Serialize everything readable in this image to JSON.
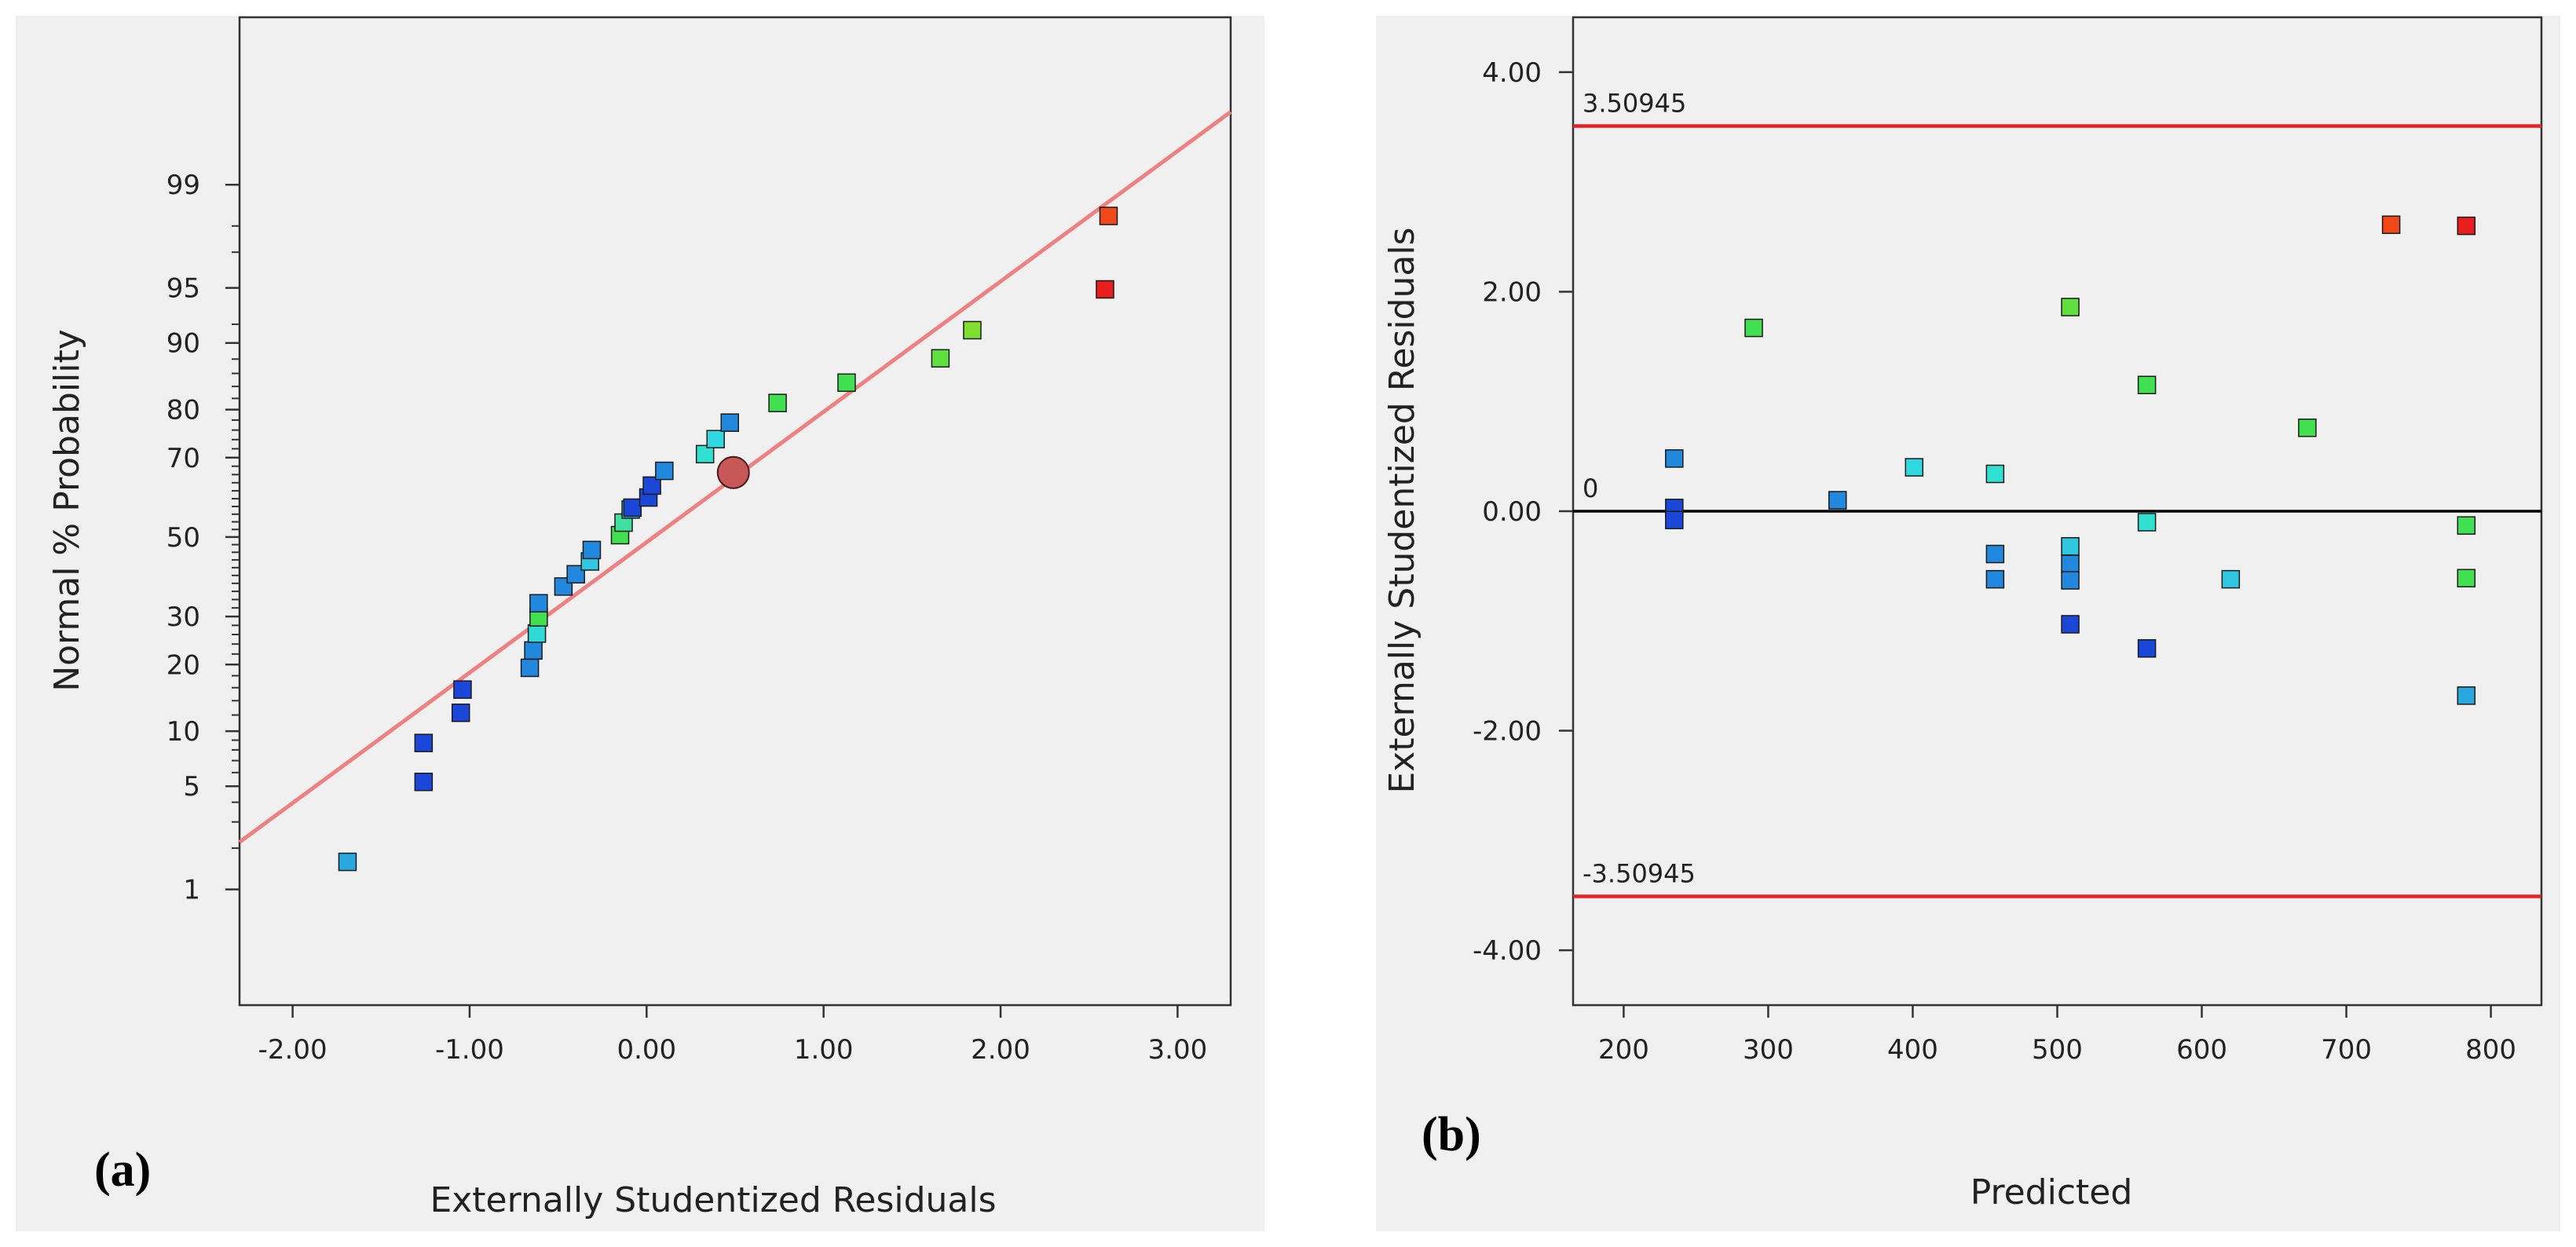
{
  "chart_data": [
    {
      "panel_label": "(a)",
      "type": "scatter",
      "title": "",
      "xlabel": "Externally Studentized Residuals",
      "ylabel": "Normal % Probability",
      "xlim": [
        -2.3,
        3.3
      ],
      "ylim": [
        0.1,
        99.97
      ],
      "y_scale": "probit",
      "grid": false,
      "x_ticks": [
        {
          "value": -2,
          "label": "-2.00"
        },
        {
          "value": -1,
          "label": "-1.00"
        },
        {
          "value": 0,
          "label": "0.00"
        },
        {
          "value": 1,
          "label": "1.00"
        },
        {
          "value": 2,
          "label": "2.00"
        },
        {
          "value": 3,
          "label": "3.00"
        }
      ],
      "y_ticks": [
        {
          "value": 1,
          "label": "1"
        },
        {
          "value": 5,
          "label": "5"
        },
        {
          "value": 10,
          "label": "10"
        },
        {
          "value": 20,
          "label": "20"
        },
        {
          "value": 30,
          "label": "30"
        },
        {
          "value": 50,
          "label": "50"
        },
        {
          "value": 70,
          "label": "70"
        },
        {
          "value": 80,
          "label": "80"
        },
        {
          "value": 90,
          "label": "90"
        },
        {
          "value": 95,
          "label": "95"
        },
        {
          "value": 99,
          "label": "99"
        }
      ],
      "y_minor_ticks": [
        2,
        3,
        4,
        6,
        7,
        8,
        9,
        12,
        14,
        16,
        18,
        22,
        24,
        26,
        28,
        32,
        34,
        36,
        38,
        40,
        42,
        44,
        46,
        48,
        52,
        54,
        56,
        58,
        60,
        62,
        64,
        66,
        68,
        72,
        74,
        76,
        78,
        82,
        84,
        86,
        88,
        92,
        97,
        98
      ],
      "reference_line": {
        "x": [
          -2.3,
          3.3
        ],
        "y": [
          2.2,
          99.75
        ],
        "color": "#f08080"
      },
      "points": [
        {
          "x": -1.69,
          "y": 1.6,
          "color": "#29a8e0"
        },
        {
          "x": -1.26,
          "y": 5.3,
          "color": "#1a47d8"
        },
        {
          "x": -1.26,
          "y": 8.7,
          "color": "#1a47d8"
        },
        {
          "x": -1.05,
          "y": 12.3,
          "color": "#1a47d8"
        },
        {
          "x": -1.04,
          "y": 15.7,
          "color": "#1a47d8"
        },
        {
          "x": -0.66,
          "y": 19.4,
          "color": "#2288dd"
        },
        {
          "x": -0.64,
          "y": 22.7,
          "color": "#2288dd"
        },
        {
          "x": -0.62,
          "y": 26.2,
          "color": "#30d8d8"
        },
        {
          "x": -0.61,
          "y": 29.8,
          "color": "#40e050"
        },
        {
          "x": -0.61,
          "y": 33.1,
          "color": "#2288dd"
        },
        {
          "x": -0.47,
          "y": 37.2,
          "color": "#2288dd"
        },
        {
          "x": -0.4,
          "y": 40.3,
          "color": "#2288dd"
        },
        {
          "x": -0.32,
          "y": 43.6,
          "color": "#30c8e0"
        },
        {
          "x": -0.31,
          "y": 46.6,
          "color": "#2288dd"
        },
        {
          "x": -0.15,
          "y": 50.5,
          "color": "#40e050"
        },
        {
          "x": -0.13,
          "y": 53.8,
          "color": "#40e0a0"
        },
        {
          "x": -0.09,
          "y": 57.2,
          "color": "#30c8e0"
        },
        {
          "x": -0.08,
          "y": 57.7,
          "color": "#1a47d8"
        },
        {
          "x": 0.01,
          "y": 60.3,
          "color": "#1a47d8"
        },
        {
          "x": 0.03,
          "y": 63.3,
          "color": "#1a47d8"
        },
        {
          "x": 0.1,
          "y": 66.9,
          "color": "#2288dd"
        },
        {
          "x": 0.33,
          "y": 70.8,
          "color": "#30e0d0"
        },
        {
          "x": 0.39,
          "y": 74.1,
          "color": "#30d8e0"
        },
        {
          "x": 0.47,
          "y": 77.5,
          "color": "#2288dd"
        },
        {
          "x": 0.74,
          "y": 81.2,
          "color": "#40e050"
        },
        {
          "x": 1.13,
          "y": 84.6,
          "color": "#40e050"
        },
        {
          "x": 1.66,
          "y": 88.1,
          "color": "#60e040"
        },
        {
          "x": 1.84,
          "y": 91.4,
          "color": "#80e030"
        },
        {
          "x": 2.59,
          "y": 94.9,
          "color": "#e81e1e"
        },
        {
          "x": 2.61,
          "y": 98.3,
          "color": "#f04818"
        }
      ],
      "highlight_point": {
        "x": 0.49,
        "y": 66.5,
        "color": "#c85858"
      }
    },
    {
      "panel_label": "(b)",
      "type": "scatter",
      "title": "",
      "xlabel": "Predicted",
      "ylabel": "Externally Studentized Residuals",
      "xlim": [
        165,
        835
      ],
      "ylim": [
        -4.5,
        4.5
      ],
      "grid": false,
      "x_ticks": [
        {
          "value": 200,
          "label": "200"
        },
        {
          "value": 300,
          "label": "300"
        },
        {
          "value": 400,
          "label": "400"
        },
        {
          "value": 500,
          "label": "500"
        },
        {
          "value": 600,
          "label": "600"
        },
        {
          "value": 700,
          "label": "700"
        },
        {
          "value": 800,
          "label": "800"
        }
      ],
      "y_ticks": [
        {
          "value": -4,
          "label": "-4.00"
        },
        {
          "value": -2,
          "label": "-2.00"
        },
        {
          "value": 0,
          "label": "0.00"
        },
        {
          "value": 2,
          "label": "2.00"
        },
        {
          "value": 4,
          "label": "4.00"
        }
      ],
      "reference_lines": [
        {
          "y": 3.50945,
          "label": "3.50945",
          "color": "#e82020"
        },
        {
          "y": 0,
          "label": "0",
          "color": "#000000"
        },
        {
          "y": -3.50945,
          "label": "-3.50945",
          "color": "#e82020"
        }
      ],
      "points": [
        {
          "x": 235,
          "y": 0.48,
          "color": "#2288dd"
        },
        {
          "x": 235,
          "y": 0.03,
          "color": "#1a47d8"
        },
        {
          "x": 235,
          "y": -0.08,
          "color": "#1a47d8"
        },
        {
          "x": 290,
          "y": 1.67,
          "color": "#40e050"
        },
        {
          "x": 348,
          "y": 0.1,
          "color": "#2288dd"
        },
        {
          "x": 401,
          "y": 0.4,
          "color": "#30d8e0"
        },
        {
          "x": 457,
          "y": 0.34,
          "color": "#30e0d0"
        },
        {
          "x": 457,
          "y": -0.39,
          "color": "#2288dd"
        },
        {
          "x": 457,
          "y": -0.62,
          "color": "#2288dd"
        },
        {
          "x": 509,
          "y": 1.86,
          "color": "#60e040"
        },
        {
          "x": 509,
          "y": -0.32,
          "color": "#30c8e0"
        },
        {
          "x": 509,
          "y": -0.48,
          "color": "#2288dd"
        },
        {
          "x": 509,
          "y": -0.63,
          "color": "#2288dd"
        },
        {
          "x": 509,
          "y": -1.03,
          "color": "#1a47d8"
        },
        {
          "x": 562,
          "y": 1.15,
          "color": "#40e050"
        },
        {
          "x": 562,
          "y": -0.1,
          "color": "#30e0d0"
        },
        {
          "x": 562,
          "y": -1.25,
          "color": "#1a47d8"
        },
        {
          "x": 620,
          "y": -0.62,
          "color": "#30c8e0"
        },
        {
          "x": 673,
          "y": 0.76,
          "color": "#40e050"
        },
        {
          "x": 731,
          "y": 2.61,
          "color": "#f04818"
        },
        {
          "x": 783,
          "y": 2.6,
          "color": "#e81e1e"
        },
        {
          "x": 783,
          "y": -0.13,
          "color": "#40e050"
        },
        {
          "x": 783,
          "y": -0.61,
          "color": "#40e050"
        },
        {
          "x": 783,
          "y": -1.68,
          "color": "#29a8e0"
        }
      ]
    }
  ]
}
